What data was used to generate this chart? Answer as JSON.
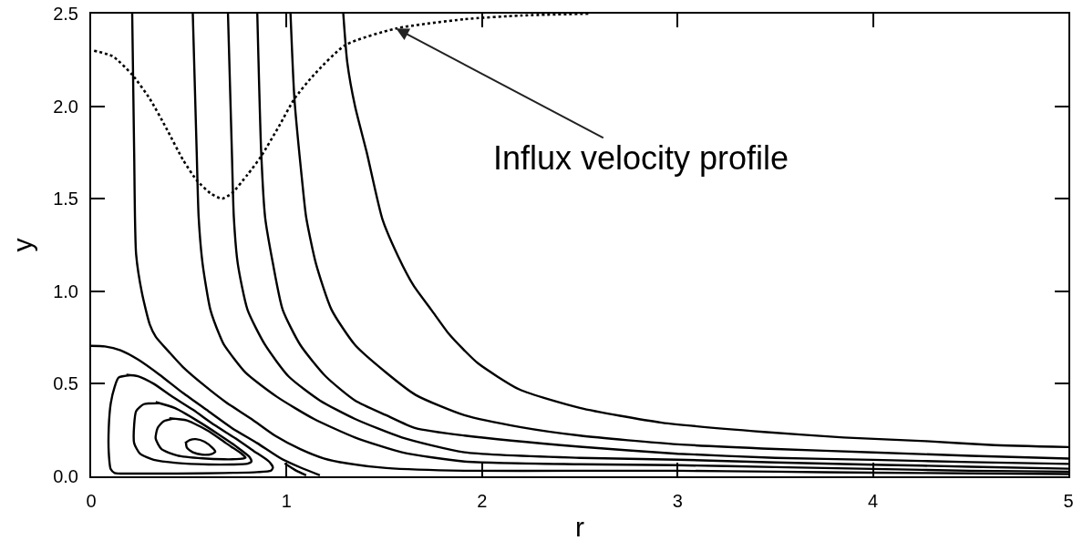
{
  "chart_data": {
    "type": "line",
    "xlabel": "r",
    "ylabel": "y",
    "xlim": [
      0,
      5
    ],
    "ylim": [
      0,
      2.5
    ],
    "xticks": [
      0,
      1,
      2,
      3,
      4,
      5
    ],
    "yticks": [
      {
        "value": 0,
        "label": "0.0"
      },
      0.5,
      {
        "value": 1,
        "label": "1.0"
      },
      1.5,
      {
        "value": 2,
        "label": "2.0"
      },
      2.5
    ],
    "grid": false,
    "legend": false,
    "marker": "none",
    "line_style": "solid",
    "annotations": [
      {
        "text": "Influx velocity profile",
        "x": 1.56,
        "y": 2.42
      }
    ],
    "series": [
      {
        "color": "#000000",
        "x": [
          0.21,
          0.22,
          0.23,
          0.26,
          0.3,
          0.33,
          0.4,
          0.47,
          0.58,
          0.69,
          0.82,
          0.94,
          1.07,
          1.19,
          1.31,
          1.51,
          1.91,
          2.5,
          3.0,
          3.5,
          4.0,
          4.5,
          5.0
        ],
        "values": [
          2.5,
          1.75,
          1.2,
          0.99,
          0.82,
          0.755,
          0.67,
          0.59,
          0.49,
          0.4,
          0.31,
          0.22,
          0.147,
          0.097,
          0.07,
          0.045,
          0.03,
          0.03,
          0.03,
          0.025,
          0.02,
          0.016,
          0.012
        ]
      },
      {
        "color": "#000000",
        "x": [
          0.52,
          0.54,
          0.55,
          0.57,
          0.61,
          0.66,
          0.68,
          0.79,
          0.95,
          1.14,
          1.35,
          1.59,
          1.91,
          2.5,
          3.0,
          3.5,
          4.0,
          4.5,
          5.0
        ],
        "values": [
          2.5,
          1.75,
          1.4,
          1.15,
          0.9,
          0.755,
          0.71,
          0.56,
          0.43,
          0.31,
          0.21,
          0.13,
          0.08,
          0.065,
          0.06,
          0.05,
          0.04,
          0.03,
          0.025
        ]
      },
      {
        "color": "#000000",
        "x": [
          0.7,
          0.72,
          0.73,
          0.75,
          0.8,
          0.89,
          1.01,
          1.17,
          1.35,
          1.59,
          1.91,
          2.5,
          3.0,
          3.5,
          4.0,
          4.5,
          5.0
        ],
        "values": [
          2.5,
          1.75,
          1.4,
          1.15,
          0.9,
          0.71,
          0.54,
          0.41,
          0.31,
          0.21,
          0.13,
          0.1,
          0.09,
          0.075,
          0.063,
          0.052,
          0.041
        ]
      },
      {
        "color": "#000000",
        "x": [
          0.85,
          0.87,
          0.89,
          0.93,
          0.98,
          1.07,
          1.2,
          1.35,
          1.51,
          1.66,
          1.91,
          2.5,
          3.0,
          3.5,
          4.0,
          4.5,
          5.0
        ],
        "values": [
          2.5,
          1.75,
          1.4,
          1.15,
          0.9,
          0.71,
          0.54,
          0.41,
          0.33,
          0.26,
          0.22,
          0.16,
          0.122,
          0.1,
          0.089,
          0.077,
          0.067
        ]
      },
      {
        "color": "#000000",
        "x": [
          1.02,
          1.04,
          1.08,
          1.1,
          1.15,
          1.23,
          1.35,
          1.51,
          1.66,
          1.91,
          2.2,
          2.5,
          3.0,
          3.5,
          4.0,
          4.5,
          5.0
        ],
        "values": [
          2.5,
          2.04,
          1.59,
          1.4,
          1.15,
          0.9,
          0.71,
          0.56,
          0.44,
          0.33,
          0.265,
          0.22,
          0.173,
          0.148,
          0.129,
          0.111,
          0.096
        ]
      },
      {
        "color": "#000000",
        "x": [
          1.29,
          1.31,
          1.35,
          1.41,
          1.49,
          1.57,
          1.65,
          1.74,
          1.83,
          1.91,
          1.98,
          2.19,
          2.5,
          2.92,
          3.44,
          3.85,
          4.27,
          4.6,
          5.0
        ],
        "values": [
          2.5,
          2.24,
          2.0,
          1.75,
          1.39,
          1.19,
          1.03,
          0.9,
          0.77,
          0.68,
          0.61,
          0.47,
          0.37,
          0.29,
          0.24,
          0.21,
          0.19,
          0.17,
          0.158
        ]
      },
      {
        "color": "#000000",
        "x": [
          0.0,
          0.07,
          0.15,
          0.24,
          0.35,
          0.47,
          0.6,
          0.72,
          0.85,
          0.97,
          1.07,
          1.17
        ],
        "values": [
          0.705,
          0.702,
          0.681,
          0.631,
          0.549,
          0.45,
          0.352,
          0.261,
          0.179,
          0.097,
          0.048,
          0.006
        ]
      },
      {
        "color": "#000000",
        "x": [
          0.99,
          1.05,
          1.1
        ],
        "values": [
          0.07,
          0.03,
          0.006
        ]
      },
      {
        "color": "#000000",
        "x": [
          0.18,
          0.24,
          0.32,
          0.41,
          0.52,
          0.63,
          0.74,
          0.83,
          0.91,
          0.93,
          0.92,
          0.85,
          0.68,
          0.44,
          0.21,
          0.12,
          0.1,
          0.09,
          0.09,
          0.1,
          0.12,
          0.14,
          0.2
        ],
        "values": [
          0.549,
          0.541,
          0.5,
          0.434,
          0.36,
          0.278,
          0.204,
          0.138,
          0.08,
          0.048,
          0.031,
          0.023,
          0.018,
          0.015,
          0.015,
          0.018,
          0.039,
          0.13,
          0.261,
          0.393,
          0.483,
          0.533,
          0.546
        ]
      },
      {
        "color": "#000000",
        "x": [
          0.33,
          0.43,
          0.54,
          0.65,
          0.74,
          0.81,
          0.82,
          0.8,
          0.72,
          0.6,
          0.44,
          0.32,
          0.25,
          0.22,
          0.22,
          0.23,
          0.27,
          0.35
        ],
        "values": [
          0.401,
          0.368,
          0.302,
          0.228,
          0.163,
          0.105,
          0.08,
          0.068,
          0.064,
          0.064,
          0.072,
          0.089,
          0.122,
          0.179,
          0.278,
          0.352,
          0.39,
          0.395
        ]
      },
      {
        "color": "#000000",
        "x": [
          0.4,
          0.49,
          0.6,
          0.69,
          0.77,
          0.79,
          0.76,
          0.68,
          0.57,
          0.44,
          0.36,
          0.33,
          0.34,
          0.37,
          0.42
        ],
        "values": [
          0.314,
          0.302,
          0.245,
          0.179,
          0.122,
          0.1,
          0.094,
          0.092,
          0.097,
          0.113,
          0.147,
          0.204,
          0.261,
          0.297,
          0.312
        ]
      },
      {
        "color": "#000000",
        "x": [
          0.48,
          0.505,
          0.535,
          0.58,
          0.62,
          0.635,
          0.615,
          0.57,
          0.52,
          0.49,
          0.485
        ],
        "values": [
          0.179,
          0.196,
          0.201,
          0.187,
          0.154,
          0.133,
          0.12,
          0.117,
          0.13,
          0.154,
          0.182
        ]
      },
      {
        "color": "#000000",
        "line_style": "dotted",
        "x": [
          0.015,
          0.11,
          0.21,
          0.3,
          0.39,
          0.47,
          0.54,
          0.61,
          0.67,
          0.72,
          0.8,
          0.87,
          0.96,
          1.04,
          1.14,
          1.3,
          1.56,
          1.91,
          2.2,
          2.55
        ],
        "values": [
          2.3,
          2.27,
          2.17,
          2.04,
          1.87,
          1.71,
          1.6,
          1.53,
          1.5,
          1.53,
          1.63,
          1.73,
          1.89,
          2.04,
          2.17,
          2.33,
          2.42,
          2.47,
          2.49,
          2.5
        ]
      }
    ]
  }
}
